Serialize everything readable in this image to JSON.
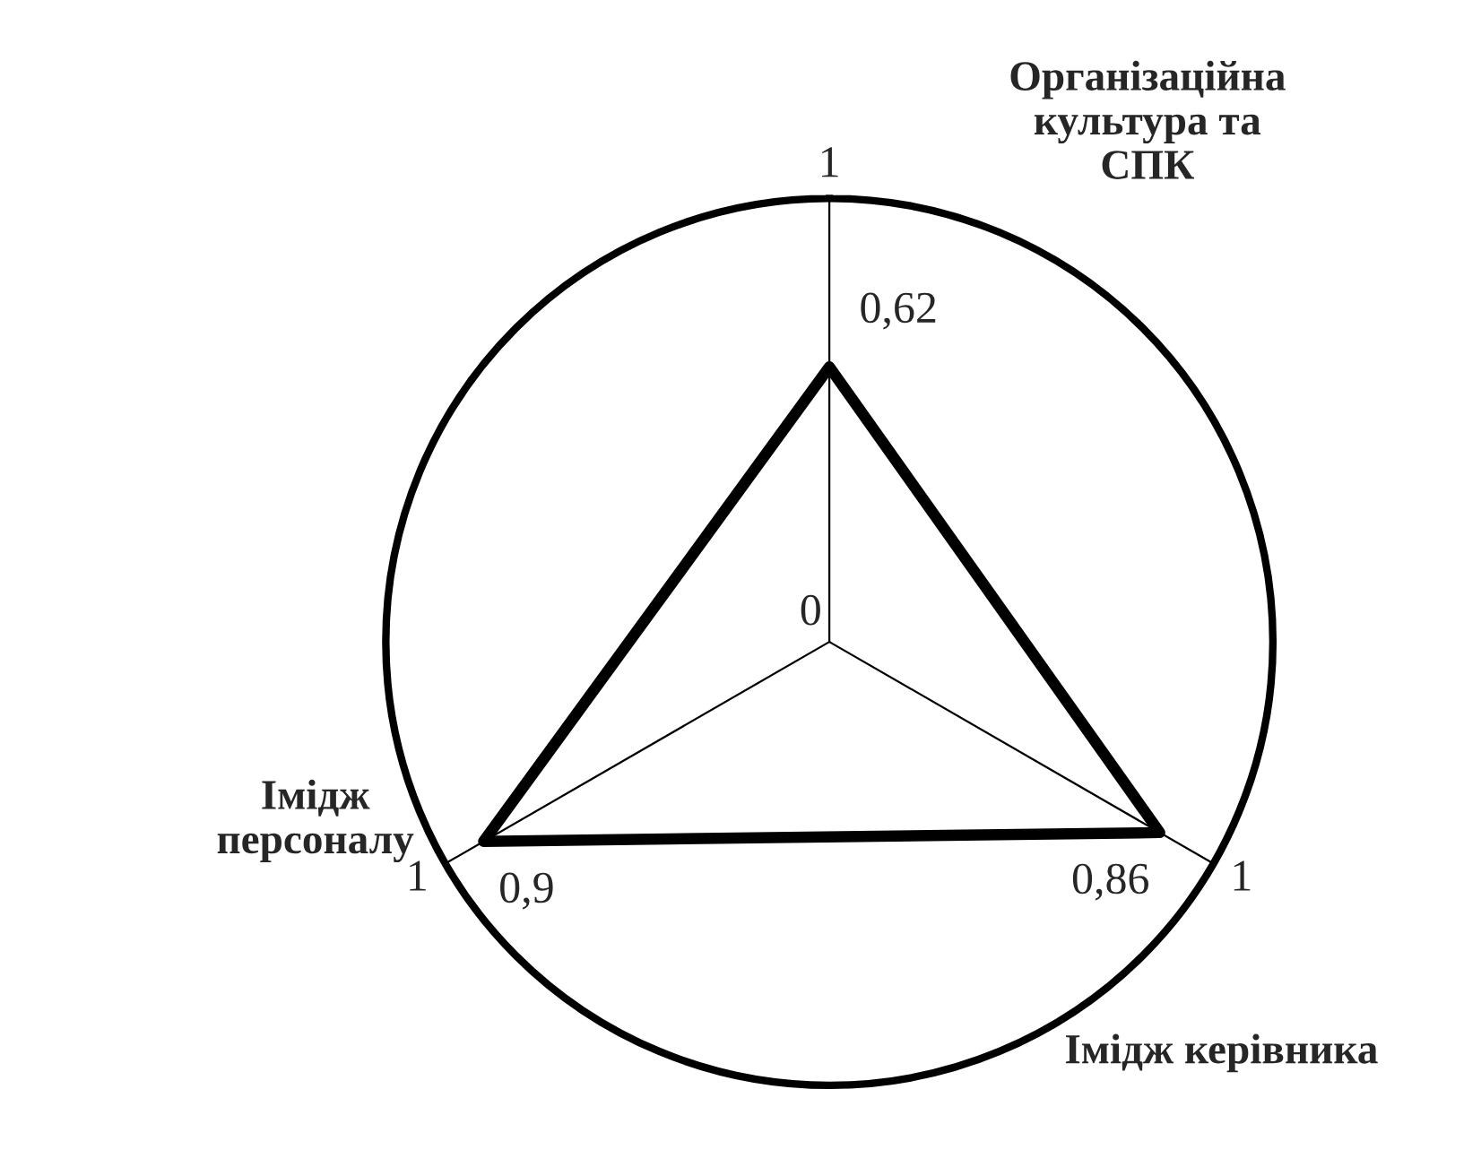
{
  "chart_data": {
    "type": "radar",
    "categories": [
      "Організаційна\nкультура та\nСПК",
      "Імідж керівника",
      "Імідж\nперсоналу"
    ],
    "series": [
      {
        "color": "#000000",
        "values": [
          0.62,
          0.86,
          0.9
        ],
        "value_labels": [
          "0,62",
          "0,86",
          "0,9"
        ]
      }
    ],
    "ylim": [
      0,
      1
    ],
    "yticks": [
      0,
      1
    ],
    "grid": true,
    "annotations": [
      {
        "text": "1",
        "x": "Імідж керівника"
      },
      {
        "text": "1",
        "x": "Імідж\nперсоналу"
      }
    ]
  }
}
